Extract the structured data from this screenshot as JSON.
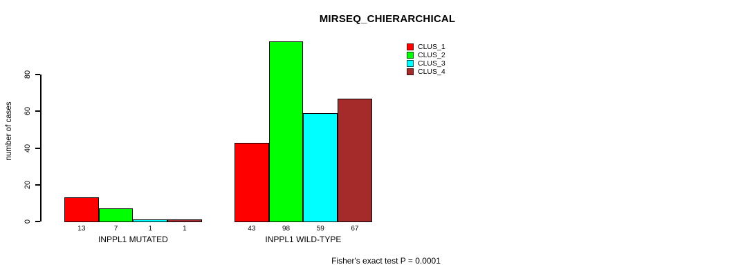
{
  "chart_data": {
    "type": "bar",
    "title": "MIRSEQ_CHIERARCHICAL",
    "ylabel": "number of cases",
    "xlabel": "",
    "ylim": [
      0,
      80
    ],
    "yticks": [
      0,
      20,
      40,
      60,
      80
    ],
    "grid": false,
    "legend_position": "top-right",
    "bar_border_color": "#000000",
    "categories": [
      "INPPL1 MUTATED",
      "INPPL1 WILD-TYPE"
    ],
    "series": [
      {
        "name": "CLUS_1",
        "color": "#FF0000",
        "values": [
          13,
          43
        ]
      },
      {
        "name": "CLUS_2",
        "color": "#00FF00",
        "values": [
          7,
          98
        ]
      },
      {
        "name": "CLUS_3",
        "color": "#00FFFF",
        "values": [
          1,
          59
        ]
      },
      {
        "name": "CLUS_4",
        "color": "#A52A2A",
        "values": [
          1,
          67
        ]
      }
    ],
    "groups": [
      {
        "label": "INPPL1 MUTATED",
        "values": [
          13,
          7,
          1,
          1
        ]
      },
      {
        "label": "INPPL1 WILD-TYPE",
        "values": [
          43,
          98,
          59,
          67
        ]
      }
    ],
    "bar_value_labels_shown": true,
    "footer": "Fisher's exact test P = 0.0001"
  }
}
